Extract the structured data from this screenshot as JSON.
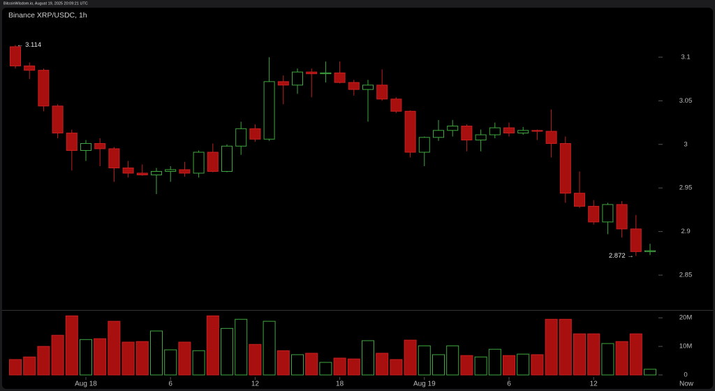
{
  "header": "BitcoinWisdom.io, August 19, 2025 20:09:21 UTC",
  "chart_data": {
    "type": "candlestick",
    "title": "Binance XRP/USDC, 1h",
    "categories": [
      null,
      null,
      null,
      null,
      null,
      "Aug 18",
      null,
      null,
      null,
      null,
      null,
      "6",
      null,
      null,
      null,
      null,
      null,
      "12",
      null,
      null,
      null,
      null,
      null,
      "18",
      null,
      null,
      null,
      null,
      null,
      "Aug 19",
      null,
      null,
      null,
      null,
      null,
      "6",
      null,
      null,
      null,
      null,
      null,
      "12",
      null,
      null,
      null,
      null
    ],
    "now_label": "Now",
    "open": [
      3.112,
      3.09,
      3.085,
      3.044,
      3.013,
      2.993,
      3.001,
      2.995,
      2.973,
      2.967,
      2.965,
      2.969,
      2.971,
      2.967,
      2.991,
      2.969,
      2.998,
      3.018,
      3.006,
      3.072,
      3.068,
      3.083,
      3.081,
      3.082,
      3.071,
      3.063,
      3.068,
      3.052,
      3.038,
      2.991,
      3.008,
      3.016,
      3.021,
      3.005,
      3.011,
      3.019,
      3.013,
      3.016,
      3.015,
      3.001,
      2.944,
      2.929,
      2.911,
      2.931,
      2.903,
      2.877
    ],
    "high": [
      3.114,
      3.094,
      3.087,
      3.046,
      3.017,
      3.005,
      3.007,
      2.997,
      2.981,
      2.977,
      2.973,
      2.975,
      2.98,
      2.993,
      3.001,
      3.0,
      3.026,
      3.023,
      3.1,
      3.079,
      3.087,
      3.087,
      3.095,
      3.095,
      3.074,
      3.074,
      3.086,
      3.054,
      3.039,
      3.009,
      3.028,
      3.028,
      3.023,
      3.017,
      3.025,
      3.025,
      3.02,
      3.017,
      3.04,
      3.009,
      2.969,
      2.936,
      2.933,
      2.935,
      2.919,
      2.886
    ],
    "low": [
      3.087,
      3.075,
      3.038,
      3.007,
      2.97,
      2.981,
      2.975,
      2.957,
      2.962,
      2.964,
      2.943,
      2.957,
      2.963,
      2.962,
      2.968,
      2.968,
      2.988,
      3.003,
      3.004,
      3.046,
      3.058,
      3.054,
      3.071,
      3.07,
      3.056,
      3.026,
      3.05,
      3.036,
      2.985,
      2.975,
      3.004,
      3.009,
      2.992,
      2.992,
      3.007,
      3.009,
      3.011,
      3.005,
      2.985,
      2.933,
      2.927,
      2.908,
      2.897,
      2.893,
      2.872,
      2.873
    ],
    "close": [
      3.09,
      3.085,
      3.044,
      3.013,
      2.993,
      3.001,
      2.995,
      2.973,
      2.967,
      2.965,
      2.969,
      2.971,
      2.967,
      2.991,
      2.969,
      2.998,
      3.018,
      3.006,
      3.072,
      3.068,
      3.083,
      3.081,
      3.082,
      3.071,
      3.063,
      3.068,
      3.052,
      3.038,
      2.991,
      3.008,
      3.016,
      3.021,
      3.005,
      3.011,
      3.019,
      3.013,
      3.016,
      3.015,
      3.001,
      2.944,
      2.929,
      2.911,
      2.931,
      2.903,
      2.877,
      2.878
    ],
    "ylim": [
      2.81,
      3.156
    ],
    "yticks": [
      2.85,
      2.9,
      2.95,
      3,
      3.05,
      3.1
    ],
    "up_color": "#3fa83f",
    "down_color": "#a81010",
    "annotations": [
      {
        "value": 3.114,
        "label": "← 3.114"
      },
      {
        "value": 2.872,
        "label": "2.872 →"
      }
    ],
    "volume": {
      "type": "bar",
      "values": [
        5.4,
        6.3,
        10,
        13.9,
        20.7,
        12.4,
        12.7,
        18.8,
        11.5,
        11.7,
        15.4,
        8.8,
        11.5,
        8.5,
        20.7,
        16.3,
        19.5,
        10.7,
        18.8,
        8.5,
        7.1,
        7.6,
        4.4,
        5.9,
        5.6,
        12,
        7.6,
        5.4,
        12.2,
        10.2,
        7.1,
        10.2,
        6.8,
        6.3,
        9,
        6.8,
        7.3,
        7.1,
        19.5,
        19.5,
        14.4,
        14.4,
        11,
        11.7,
        14.4,
        2
      ],
      "ylim": [
        0,
        22.5
      ],
      "yticks": [
        0,
        {
          "value": 10,
          "label": "10M"
        },
        {
          "value": 20,
          "label": "20M"
        }
      ]
    }
  }
}
